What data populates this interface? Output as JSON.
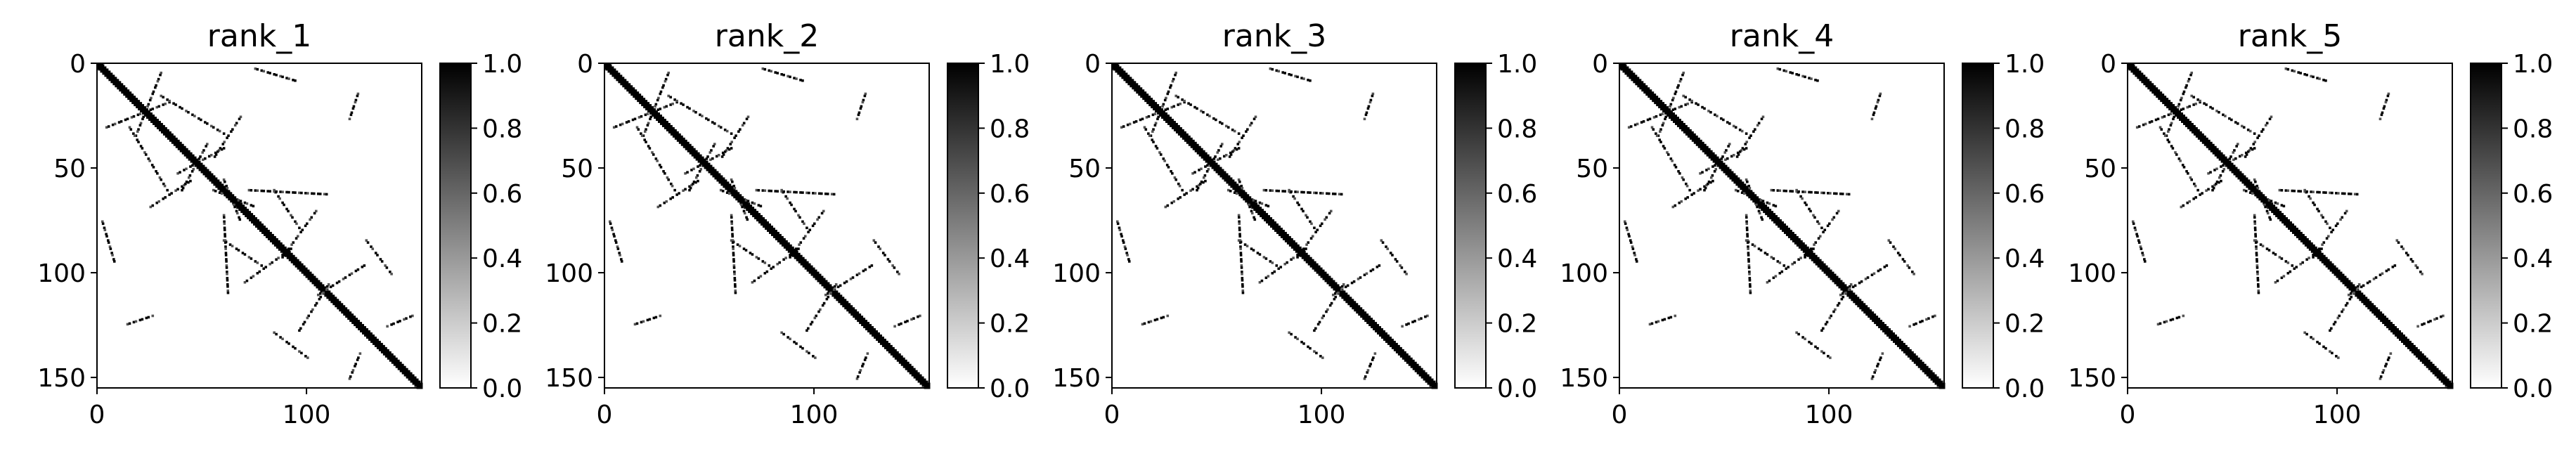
{
  "chart_data": [
    {
      "type": "heatmap",
      "title": "rank_1",
      "xlabel": "",
      "ylabel": "",
      "xlim": [
        0,
        155
      ],
      "ylim": [
        155,
        0
      ],
      "x_ticks": [
        0,
        100
      ],
      "y_ticks": [
        0,
        50,
        100,
        150
      ],
      "colorbar": {
        "min": 0.0,
        "max": 1.0,
        "ticks": [
          "0.0",
          "0.2",
          "0.4",
          "0.6",
          "0.8",
          "1.0"
        ],
        "colormap": "gray_r"
      },
      "matrix_size": 155,
      "diagonal_band_width": 3,
      "contact_segments": [
        {
          "start": [
            4,
            30
          ],
          "end": [
            34,
            18
          ]
        },
        {
          "start": [
            2,
            75
          ],
          "end": [
            8,
            95
          ]
        },
        {
          "start": [
            30,
            15
          ],
          "end": [
            60,
            33
          ]
        },
        {
          "start": [
            25,
            68
          ],
          "end": [
            45,
            55
          ]
        },
        {
          "start": [
            38,
            52
          ],
          "end": [
            60,
            40
          ]
        },
        {
          "start": [
            55,
            60
          ],
          "end": [
            75,
            68
          ]
        },
        {
          "start": [
            60,
            84
          ],
          "end": [
            78,
            96
          ]
        },
        {
          "start": [
            70,
            104
          ],
          "end": [
            92,
            88
          ]
        },
        {
          "start": [
            72,
            60
          ],
          "end": [
            110,
            62
          ]
        },
        {
          "start": [
            84,
            128
          ],
          "end": [
            100,
            140
          ]
        },
        {
          "start": [
            105,
            110
          ],
          "end": [
            127,
            96
          ]
        },
        {
          "start": [
            14,
            124
          ],
          "end": [
            26,
            120
          ]
        },
        {
          "start": [
            120,
            150
          ],
          "end": [
            125,
            138
          ]
        }
      ]
    },
    {
      "type": "heatmap",
      "title": "rank_2",
      "xlabel": "",
      "ylabel": "",
      "xlim": [
        0,
        155
      ],
      "ylim": [
        155,
        0
      ],
      "x_ticks": [
        0,
        100
      ],
      "y_ticks": [
        0,
        50,
        100,
        150
      ],
      "colorbar": {
        "min": 0.0,
        "max": 1.0,
        "ticks": [
          "0.0",
          "0.2",
          "0.4",
          "0.6",
          "0.8",
          "1.0"
        ],
        "colormap": "gray_r"
      },
      "matrix_size": 155,
      "diagonal_band_width": 3,
      "contact_segments": [
        {
          "start": [
            4,
            30
          ],
          "end": [
            34,
            18
          ]
        },
        {
          "start": [
            2,
            75
          ],
          "end": [
            8,
            95
          ]
        },
        {
          "start": [
            30,
            15
          ],
          "end": [
            60,
            33
          ]
        },
        {
          "start": [
            25,
            68
          ],
          "end": [
            45,
            55
          ]
        },
        {
          "start": [
            38,
            52
          ],
          "end": [
            60,
            40
          ]
        },
        {
          "start": [
            55,
            60
          ],
          "end": [
            75,
            68
          ]
        },
        {
          "start": [
            60,
            84
          ],
          "end": [
            78,
            96
          ]
        },
        {
          "start": [
            70,
            104
          ],
          "end": [
            92,
            88
          ]
        },
        {
          "start": [
            72,
            60
          ],
          "end": [
            110,
            62
          ]
        },
        {
          "start": [
            84,
            128
          ],
          "end": [
            100,
            140
          ]
        },
        {
          "start": [
            105,
            110
          ],
          "end": [
            127,
            96
          ]
        },
        {
          "start": [
            14,
            124
          ],
          "end": [
            26,
            120
          ]
        },
        {
          "start": [
            120,
            150
          ],
          "end": [
            125,
            138
          ]
        }
      ]
    },
    {
      "type": "heatmap",
      "title": "rank_3",
      "xlabel": "",
      "ylabel": "",
      "xlim": [
        0,
        155
      ],
      "ylim": [
        155,
        0
      ],
      "x_ticks": [
        0,
        100
      ],
      "y_ticks": [
        0,
        50,
        100,
        150
      ],
      "colorbar": {
        "min": 0.0,
        "max": 1.0,
        "ticks": [
          "0.0",
          "0.2",
          "0.4",
          "0.6",
          "0.8",
          "1.0"
        ],
        "colormap": "gray_r"
      },
      "matrix_size": 155,
      "diagonal_band_width": 3,
      "contact_segments": [
        {
          "start": [
            4,
            30
          ],
          "end": [
            34,
            18
          ]
        },
        {
          "start": [
            2,
            75
          ],
          "end": [
            8,
            95
          ]
        },
        {
          "start": [
            30,
            15
          ],
          "end": [
            60,
            33
          ]
        },
        {
          "start": [
            25,
            68
          ],
          "end": [
            45,
            55
          ]
        },
        {
          "start": [
            38,
            52
          ],
          "end": [
            60,
            40
          ]
        },
        {
          "start": [
            55,
            60
          ],
          "end": [
            75,
            68
          ]
        },
        {
          "start": [
            60,
            84
          ],
          "end": [
            78,
            96
          ]
        },
        {
          "start": [
            70,
            104
          ],
          "end": [
            92,
            88
          ]
        },
        {
          "start": [
            72,
            60
          ],
          "end": [
            110,
            62
          ]
        },
        {
          "start": [
            84,
            128
          ],
          "end": [
            100,
            140
          ]
        },
        {
          "start": [
            105,
            110
          ],
          "end": [
            127,
            96
          ]
        },
        {
          "start": [
            14,
            124
          ],
          "end": [
            26,
            120
          ]
        },
        {
          "start": [
            120,
            150
          ],
          "end": [
            125,
            138
          ]
        }
      ]
    },
    {
      "type": "heatmap",
      "title": "rank_4",
      "xlabel": "",
      "ylabel": "",
      "xlim": [
        0,
        155
      ],
      "ylim": [
        155,
        0
      ],
      "x_ticks": [
        0,
        100
      ],
      "y_ticks": [
        0,
        50,
        100,
        150
      ],
      "colorbar": {
        "min": 0.0,
        "max": 1.0,
        "ticks": [
          "0.0",
          "0.2",
          "0.4",
          "0.6",
          "0.8",
          "1.0"
        ],
        "colormap": "gray_r"
      },
      "matrix_size": 155,
      "diagonal_band_width": 3,
      "contact_segments": [
        {
          "start": [
            4,
            30
          ],
          "end": [
            34,
            18
          ]
        },
        {
          "start": [
            2,
            75
          ],
          "end": [
            8,
            95
          ]
        },
        {
          "start": [
            30,
            15
          ],
          "end": [
            60,
            33
          ]
        },
        {
          "start": [
            25,
            68
          ],
          "end": [
            45,
            55
          ]
        },
        {
          "start": [
            38,
            52
          ],
          "end": [
            60,
            40
          ]
        },
        {
          "start": [
            55,
            60
          ],
          "end": [
            75,
            68
          ]
        },
        {
          "start": [
            60,
            84
          ],
          "end": [
            78,
            96
          ]
        },
        {
          "start": [
            70,
            104
          ],
          "end": [
            92,
            88
          ]
        },
        {
          "start": [
            72,
            60
          ],
          "end": [
            110,
            62
          ]
        },
        {
          "start": [
            84,
            128
          ],
          "end": [
            100,
            140
          ]
        },
        {
          "start": [
            105,
            110
          ],
          "end": [
            127,
            96
          ]
        },
        {
          "start": [
            14,
            124
          ],
          "end": [
            26,
            120
          ]
        },
        {
          "start": [
            120,
            150
          ],
          "end": [
            125,
            138
          ]
        }
      ]
    },
    {
      "type": "heatmap",
      "title": "rank_5",
      "xlabel": "",
      "ylabel": "",
      "xlim": [
        0,
        155
      ],
      "ylim": [
        155,
        0
      ],
      "x_ticks": [
        0,
        100
      ],
      "y_ticks": [
        0,
        50,
        100,
        150
      ],
      "colorbar": {
        "min": 0.0,
        "max": 1.0,
        "ticks": [
          "0.0",
          "0.2",
          "0.4",
          "0.6",
          "0.8",
          "1.0"
        ],
        "colormap": "gray_r"
      },
      "matrix_size": 155,
      "diagonal_band_width": 3,
      "contact_segments": [
        {
          "start": [
            4,
            30
          ],
          "end": [
            34,
            18
          ]
        },
        {
          "start": [
            2,
            75
          ],
          "end": [
            8,
            95
          ]
        },
        {
          "start": [
            30,
            15
          ],
          "end": [
            60,
            33
          ]
        },
        {
          "start": [
            25,
            68
          ],
          "end": [
            45,
            55
          ]
        },
        {
          "start": [
            38,
            52
          ],
          "end": [
            60,
            40
          ]
        },
        {
          "start": [
            55,
            60
          ],
          "end": [
            75,
            68
          ]
        },
        {
          "start": [
            60,
            84
          ],
          "end": [
            78,
            96
          ]
        },
        {
          "start": [
            70,
            104
          ],
          "end": [
            92,
            88
          ]
        },
        {
          "start": [
            72,
            60
          ],
          "end": [
            110,
            62
          ]
        },
        {
          "start": [
            84,
            128
          ],
          "end": [
            100,
            140
          ]
        },
        {
          "start": [
            105,
            110
          ],
          "end": [
            127,
            96
          ]
        },
        {
          "start": [
            14,
            124
          ],
          "end": [
            26,
            120
          ]
        },
        {
          "start": [
            120,
            150
          ],
          "end": [
            125,
            138
          ]
        }
      ]
    }
  ]
}
